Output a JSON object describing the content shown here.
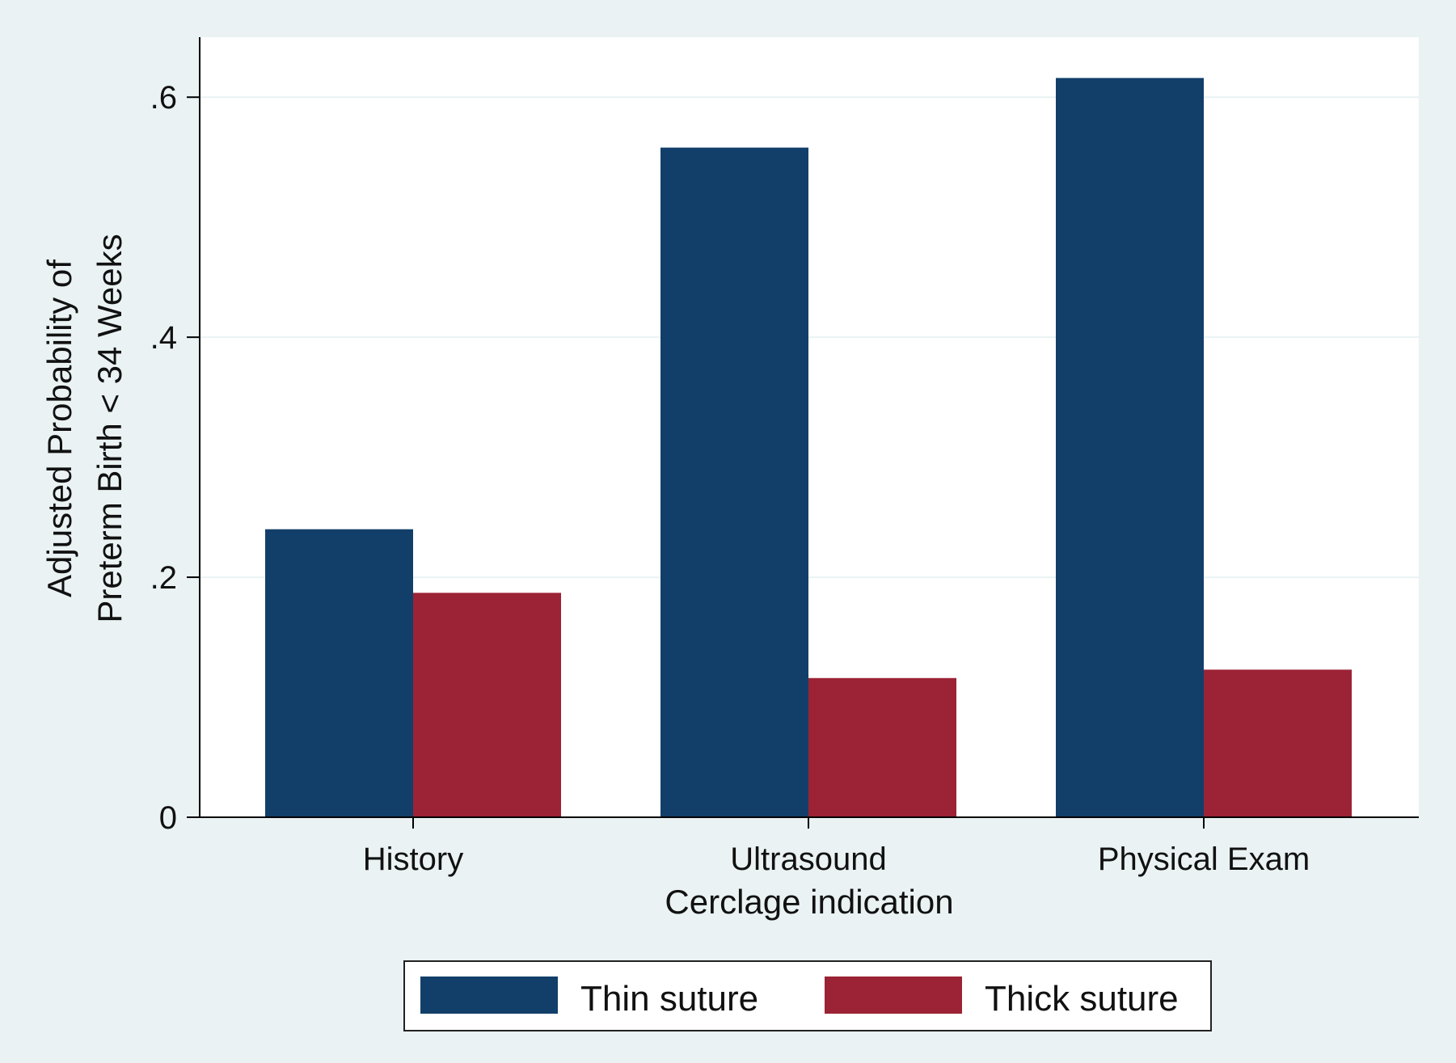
{
  "chart_data": {
    "type": "bar",
    "title": "",
    "xlabel": "Cerclage indication",
    "ylabel_lines": [
      "Adjusted Probability of",
      "Preterm Birth < 34 Weeks"
    ],
    "categories": [
      "History",
      "Ultrasound",
      "Physical Exam"
    ],
    "series": [
      {
        "name": "Thin suture",
        "color": "#123f6a",
        "values": [
          0.24,
          0.558,
          0.616
        ]
      },
      {
        "name": "Thick suture",
        "color": "#9b2335",
        "values": [
          0.187,
          0.116,
          0.123
        ]
      }
    ],
    "ylim": [
      0,
      0.65
    ],
    "yticks": [
      0,
      0.2,
      0.4,
      0.6
    ],
    "ytick_labels": [
      "0",
      ".2",
      ".4",
      ".6"
    ],
    "grid": true,
    "legend_position": "bottom"
  },
  "colors": {
    "page_background": "#eaf2f3",
    "plot_background": "#ffffff",
    "gridline": "#eaf2f3"
  }
}
